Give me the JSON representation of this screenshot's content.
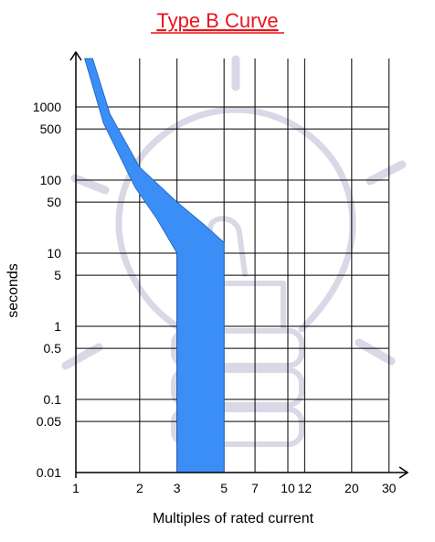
{
  "chart_data": {
    "type": "area",
    "title": "Type B Curve",
    "xlabel": "Multiples of rated current",
    "ylabel": "seconds",
    "x_scale": "log",
    "y_scale": "log",
    "x_ticks": [
      {
        "value": 1,
        "label": "1"
      },
      {
        "value": 2,
        "label": "2"
      },
      {
        "value": 3,
        "label": "3"
      },
      {
        "value": 5,
        "label": "5"
      },
      {
        "value": 7,
        "label": "7"
      },
      {
        "value": 10,
        "label": "10"
      },
      {
        "value": 12,
        "label": "12"
      },
      {
        "value": 20,
        "label": "20"
      },
      {
        "value": 30,
        "label": "30"
      }
    ],
    "y_ticks": [
      {
        "value": 0.01,
        "label": "0.01"
      },
      {
        "value": 0.05,
        "label": "0.05"
      },
      {
        "value": 0.1,
        "label": "0.1"
      },
      {
        "value": 0.5,
        "label": "0.5"
      },
      {
        "value": 1,
        "label": "1"
      },
      {
        "value": 5,
        "label": "5"
      },
      {
        "value": 10,
        "label": "10"
      },
      {
        "value": 50,
        "label": "50"
      },
      {
        "value": 100,
        "label": "100"
      },
      {
        "value": 500,
        "label": "500"
      },
      {
        "value": 1000,
        "label": "1000"
      }
    ],
    "grid": true,
    "fill_color": "#3b8ef5",
    "band": {
      "upper": [
        {
          "x": 1.2,
          "y": 5000
        },
        {
          "x": 1.45,
          "y": 800
        },
        {
          "x": 2,
          "y": 150
        },
        {
          "x": 3,
          "y": 50
        },
        {
          "x": 4,
          "y": 25
        },
        {
          "x": 5,
          "y": 14
        }
      ],
      "lower": [
        {
          "x": 1.1,
          "y": 5000
        },
        {
          "x": 1.35,
          "y": 600
        },
        {
          "x": 1.9,
          "y": 80
        },
        {
          "x": 2.4,
          "y": 30
        },
        {
          "x": 3,
          "y": 10
        }
      ],
      "instant_trip": {
        "x_start": 3,
        "x_end": 5,
        "y_bottom": 0.01
      }
    }
  },
  "colors": {
    "title": "#e8141b",
    "band": "#3b8ef5",
    "watermark": "#d8d8e6",
    "grid": "#000000"
  }
}
